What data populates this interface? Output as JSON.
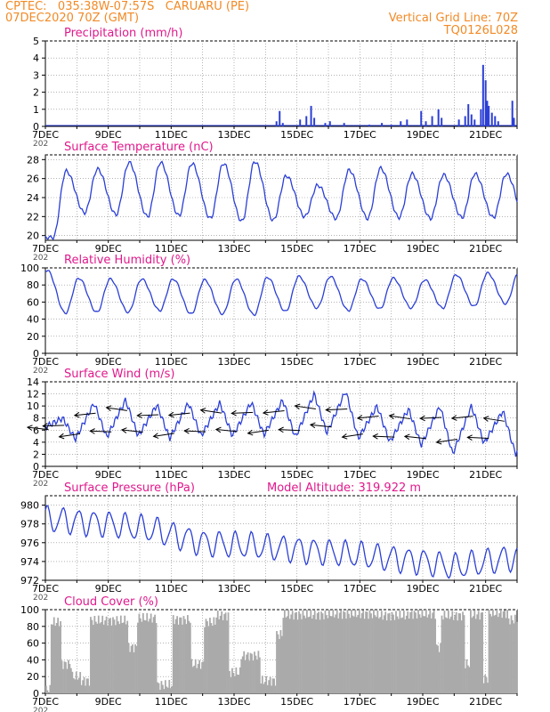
{
  "header": {
    "line1": "CPTEC:   035:38W-07:57S   CARUARU (PE)",
    "line2": "07DEC2020 70Z (GMT)",
    "right1": "Vertical Grid Line: 70Z",
    "right2": "TQ0126L028"
  },
  "colors": {
    "header": "#f28a26",
    "title": "#e0198c",
    "line": "#2b3fd6",
    "cloud": "#aaaaaa",
    "wind": "#000000"
  },
  "x_axis": {
    "labels": [
      "7DEC",
      "9DEC",
      "11DEC",
      "13DEC",
      "15DEC",
      "17DEC",
      "19DEC",
      "21DEC"
    ],
    "overlap_fragment": "202",
    "day_start": 7,
    "day_end": 22
  },
  "chart_data": [
    {
      "type": "bar",
      "key": "precip",
      "title": "Precipitation  (mm/h)",
      "ylim": [
        0,
        5
      ],
      "yticks": [
        0,
        1,
        2,
        3,
        4,
        5
      ],
      "events": [
        {
          "day": 14.35,
          "v": 0.3
        },
        {
          "day": 14.45,
          "v": 0.9
        },
        {
          "day": 14.55,
          "v": 0.2
        },
        {
          "day": 15.1,
          "v": 0.4
        },
        {
          "day": 15.3,
          "v": 0.6
        },
        {
          "day": 15.45,
          "v": 1.2
        },
        {
          "day": 15.55,
          "v": 0.5
        },
        {
          "day": 15.9,
          "v": 0.2
        },
        {
          "day": 16.05,
          "v": 0.3
        },
        {
          "day": 16.5,
          "v": 0.2
        },
        {
          "day": 17.3,
          "v": 0.1
        },
        {
          "day": 17.7,
          "v": 0.2
        },
        {
          "day": 18.0,
          "v": 0.1
        },
        {
          "day": 18.3,
          "v": 0.3
        },
        {
          "day": 18.5,
          "v": 0.4
        },
        {
          "day": 18.95,
          "v": 0.9
        },
        {
          "day": 19.1,
          "v": 0.3
        },
        {
          "day": 19.3,
          "v": 0.6
        },
        {
          "day": 19.5,
          "v": 1.0
        },
        {
          "day": 19.6,
          "v": 0.5
        },
        {
          "day": 20.15,
          "v": 0.4
        },
        {
          "day": 20.35,
          "v": 0.6
        },
        {
          "day": 20.45,
          "v": 1.3
        },
        {
          "day": 20.55,
          "v": 0.7
        },
        {
          "day": 20.65,
          "v": 0.4
        },
        {
          "day": 20.85,
          "v": 1.0
        },
        {
          "day": 20.92,
          "v": 3.6
        },
        {
          "day": 21.0,
          "v": 2.7
        },
        {
          "day": 21.05,
          "v": 1.5
        },
        {
          "day": 21.1,
          "v": 1.2
        },
        {
          "day": 21.2,
          "v": 0.8
        },
        {
          "day": 21.3,
          "v": 0.6
        },
        {
          "day": 21.4,
          "v": 0.3
        },
        {
          "day": 21.85,
          "v": 1.5
        },
        {
          "day": 21.9,
          "v": 0.5
        }
      ]
    },
    {
      "type": "line",
      "key": "temp",
      "title": "Surface Temperature (nC)",
      "ylim": [
        19.5,
        28.5
      ],
      "yticks": [
        20,
        22,
        24,
        26,
        28
      ],
      "day_min": [
        19.8,
        22.4,
        22.2,
        22.0,
        22.1,
        21.8,
        21.5,
        21.6,
        22.0,
        21.8,
        21.8,
        21.9,
        21.8,
        21.9,
        21.9,
        21.9
      ],
      "day_max": [
        26.8,
        27.0,
        27.7,
        27.7,
        27.6,
        27.6,
        27.8,
        26.3,
        25.3,
        26.9,
        27.1,
        26.5,
        26.4,
        26.5,
        26.5
      ]
    },
    {
      "type": "line",
      "key": "rh",
      "title": "Relative Humidity  (%)",
      "ylim": [
        0,
        100
      ],
      "yticks": [
        0,
        20,
        40,
        60,
        80,
        100
      ],
      "day_max": [
        97,
        88,
        87,
        87,
        87,
        86,
        87,
        89,
        90,
        90,
        87,
        88,
        86,
        92,
        94,
        95
      ],
      "day_min": [
        47,
        48,
        48,
        50,
        46,
        46,
        45,
        49,
        53,
        50,
        52,
        53,
        53,
        55,
        58
      ]
    },
    {
      "type": "line",
      "key": "wind",
      "title": "Surface Wind  (m/s)",
      "ylim": [
        0,
        14
      ],
      "yticks": [
        0,
        2,
        4,
        6,
        8,
        10,
        12,
        14
      ],
      "day_max": [
        8.0,
        10.5,
        11.0,
        10.2,
        10.5,
        10.5,
        10.6,
        11.0,
        12.0,
        12.5,
        10.0,
        9.5,
        10.0,
        10.0,
        9.2,
        9.2
      ],
      "day_min": [
        4.5,
        4.8,
        5.0,
        4.6,
        5.0,
        5.0,
        5.2,
        4.8,
        5.5,
        4.6,
        4.0,
        3.5,
        2.0,
        3.8,
        2.0
      ]
    },
    {
      "type": "line",
      "key": "pres",
      "title": "Surface Pressure (hPa)",
      "subtitle": "Model Altitude: 319.922  m",
      "ylim": [
        972,
        981
      ],
      "yticks": [
        972,
        974,
        976,
        978,
        980
      ],
      "trend": [
        [
          7,
          978.5
        ],
        [
          9,
          978.0
        ],
        [
          10.5,
          977.3
        ],
        [
          12,
          976.0
        ],
        [
          15,
          975.3
        ],
        [
          19,
          974.0
        ],
        [
          20,
          973.4
        ],
        [
          22,
          974.5
        ]
      ],
      "amplitude": 1.3
    },
    {
      "type": "area",
      "key": "cloud",
      "title": "Cloud Cover  (%)",
      "ylim": [
        0,
        100
      ],
      "yticks": [
        0,
        20,
        40,
        60,
        80,
        100
      ],
      "segments": [
        [
          7.0,
          7.15,
          4
        ],
        [
          7.15,
          7.5,
          85
        ],
        [
          7.5,
          7.8,
          35
        ],
        [
          7.8,
          8.1,
          20
        ],
        [
          8.1,
          8.4,
          15
        ],
        [
          8.4,
          9.6,
          87
        ],
        [
          9.6,
          9.9,
          55
        ],
        [
          9.9,
          10.5,
          90
        ],
        [
          10.5,
          11.0,
          10
        ],
        [
          11.0,
          11.6,
          88
        ],
        [
          11.6,
          12.0,
          35
        ],
        [
          12.0,
          12.4,
          85
        ],
        [
          12.4,
          12.8,
          93
        ],
        [
          12.8,
          13.2,
          25
        ],
        [
          13.2,
          13.8,
          45
        ],
        [
          13.8,
          14.3,
          15
        ],
        [
          14.3,
          14.5,
          70
        ],
        [
          14.5,
          16.0,
          94
        ],
        [
          16.0,
          17.5,
          95
        ],
        [
          17.5,
          18.5,
          93
        ],
        [
          18.5,
          19.4,
          95
        ],
        [
          19.4,
          19.55,
          55
        ],
        [
          19.55,
          20.3,
          93
        ],
        [
          20.3,
          20.5,
          35
        ],
        [
          20.5,
          20.9,
          94
        ],
        [
          20.9,
          21.05,
          18
        ],
        [
          21.05,
          21.7,
          96
        ],
        [
          21.7,
          22.0,
          88
        ]
      ]
    }
  ]
}
